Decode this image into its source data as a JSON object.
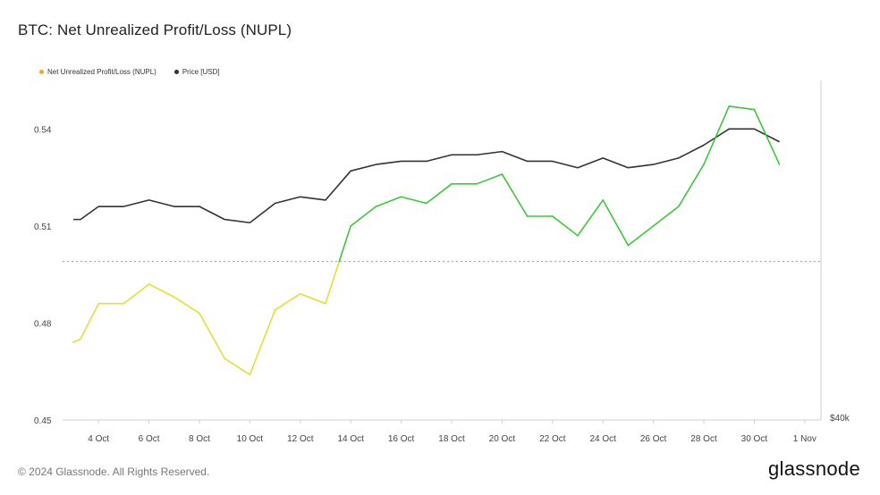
{
  "title": "BTC: Net Unrealized Profit/Loss (NUPL)",
  "legend": [
    {
      "label": "Net Unrealized Profit/Loss (NUPL)",
      "color": "#f2a33a"
    },
    {
      "label": "Price [USD]",
      "color": "#333333"
    }
  ],
  "footer": {
    "copyright": "© 2024 Glassnode. All Rights Reserved.",
    "logo": "glassnode"
  },
  "chart_data": {
    "type": "line",
    "x_ticks": [
      "4 Oct",
      "6 Oct",
      "8 Oct",
      "10 Oct",
      "12 Oct",
      "14 Oct",
      "16 Oct",
      "18 Oct",
      "20 Oct",
      "22 Oct",
      "24 Oct",
      "26 Oct",
      "28 Oct",
      "30 Oct",
      "1 Nov"
    ],
    "y_ticks": [
      "0.45",
      "0.48",
      "0.51",
      "0.54"
    ],
    "right_ticks": [
      "$40k"
    ],
    "ylim": [
      0.45,
      0.555
    ],
    "threshold": 0.499,
    "threshold_colors": {
      "below": "#e6dc3c",
      "above": "#3ec63a"
    },
    "price_color": "#333333",
    "grid": "dotted reference line at threshold",
    "x": [
      "3 Oct",
      "3 Oct",
      "4 Oct",
      "5 Oct",
      "6 Oct",
      "7 Oct",
      "8 Oct",
      "9 Oct",
      "10 Oct",
      "11 Oct",
      "12 Oct",
      "13 Oct",
      "14 Oct",
      "15 Oct",
      "16 Oct",
      "17 Oct",
      "18 Oct",
      "19 Oct",
      "20 Oct",
      "21 Oct",
      "22 Oct",
      "23 Oct",
      "24 Oct",
      "25 Oct",
      "26 Oct",
      "27 Oct",
      "28 Oct",
      "29 Oct",
      "30 Oct",
      "31 Oct"
    ],
    "series": [
      {
        "values": [
          0.474,
          0.475,
          0.486,
          0.486,
          0.492,
          0.488,
          0.483,
          0.469,
          0.464,
          0.484,
          0.489,
          0.486,
          0.51,
          0.516,
          0.519,
          0.517,
          0.523,
          0.523,
          0.526,
          0.513,
          0.513,
          0.507,
          0.518,
          0.504,
          0.51,
          0.516,
          0.529,
          0.547,
          0.546,
          0.529
        ]
      },
      {
        "values": [
          0.512,
          0.512,
          0.516,
          0.516,
          0.518,
          0.516,
          0.516,
          0.512,
          0.511,
          0.517,
          0.519,
          0.518,
          0.527,
          0.529,
          0.53,
          0.53,
          0.532,
          0.532,
          0.533,
          0.53,
          0.53,
          0.528,
          0.531,
          0.528,
          0.529,
          0.531,
          0.535,
          0.54,
          0.54,
          0.536
        ]
      }
    ]
  }
}
